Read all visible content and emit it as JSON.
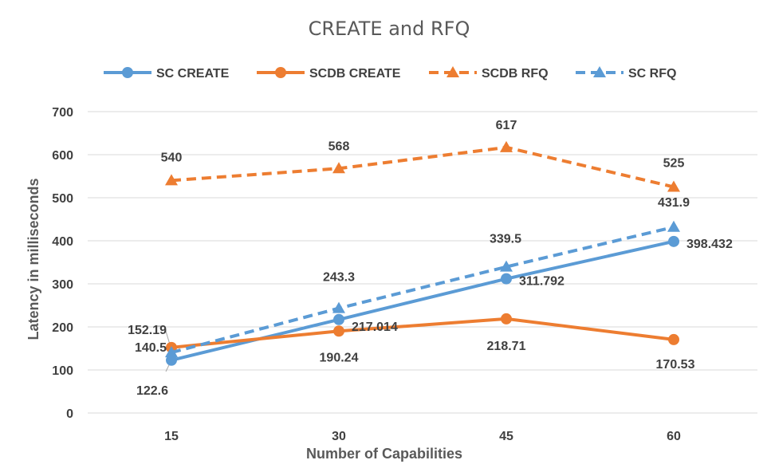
{
  "chart_data": {
    "type": "line",
    "title": "CREATE and RFQ",
    "xlabel": "Number of Capabilities",
    "ylabel": "Latency  in milliseconds",
    "categories": [
      "15",
      "30",
      "45",
      "60"
    ],
    "ylim": [
      0,
      700
    ],
    "yticks": [
      0,
      100,
      200,
      300,
      400,
      500,
      600,
      700
    ],
    "grid": "horizontal",
    "legend_position": "top",
    "series": [
      {
        "name": "SC CREATE",
        "values": [
          122.6,
          217.014,
          311.792,
          398.432
        ],
        "labels": [
          "122.6",
          "217.014",
          "311.792",
          "398.432"
        ],
        "color": "#5b9bd5",
        "style": "solid",
        "marker": "circle"
      },
      {
        "name": "SCDB CREATE",
        "values": [
          152.19,
          190.24,
          218.71,
          170.53
        ],
        "labels": [
          "152.19",
          "190.24",
          "218.71",
          "170.53"
        ],
        "color": "#ed7d31",
        "style": "solid",
        "marker": "circle"
      },
      {
        "name": "SCDB RFQ",
        "values": [
          540,
          568,
          617,
          525
        ],
        "labels": [
          "540",
          "568",
          "617",
          "525"
        ],
        "color": "#ed7d31",
        "style": "dashed",
        "marker": "triangle"
      },
      {
        "name": "SC RFQ",
        "values": [
          140.5,
          243.3,
          339.5,
          431.9
        ],
        "labels": [
          "140.5",
          "243.3",
          "339.5",
          "431.9"
        ],
        "color": "#5b9bd5",
        "style": "dashed",
        "marker": "triangle"
      }
    ]
  }
}
